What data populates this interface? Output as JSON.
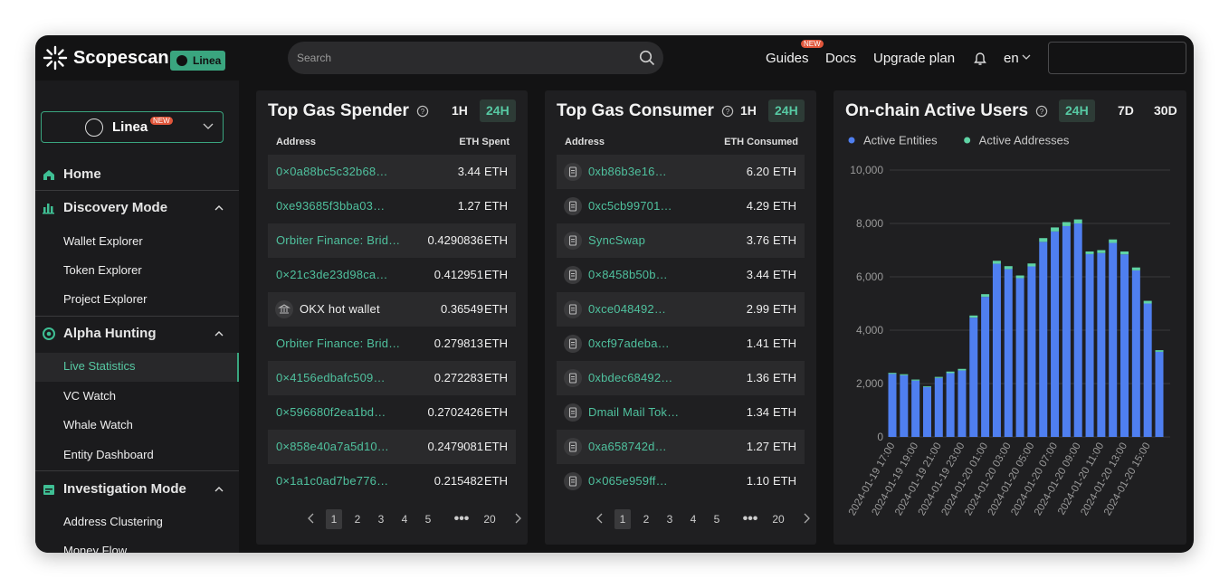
{
  "header": {
    "logo": "Scopescan",
    "chain_badge": "Linea",
    "search_placeholder": "Search",
    "nav": [
      "Guides",
      "Docs",
      "Upgrade plan"
    ],
    "nav_badge": "NEW",
    "language": "en"
  },
  "sidebar": {
    "chain": "Linea",
    "chain_badge": "NEW",
    "active_item": "Live Statistics",
    "sections": [
      {
        "title": "Home",
        "items": []
      },
      {
        "title": "Discovery Mode",
        "items": [
          "Wallet Explorer",
          "Token Explorer",
          "Project Explorer"
        ]
      },
      {
        "title": "Alpha Hunting",
        "items": [
          "Live Statistics",
          "VC Watch",
          "Whale Watch",
          "Entity Dashboard"
        ]
      },
      {
        "title": "Investigation Mode",
        "items": [
          "Address Clustering",
          "Money Flow"
        ]
      }
    ]
  },
  "tables": [
    {
      "title": "Top Gas Spender",
      "tabs": [
        "1H",
        "24H"
      ],
      "active_tab": "24H",
      "columns": [
        "Address",
        "ETH Spent"
      ],
      "rows": [
        {
          "address": "0×0a88bc5c32b68…",
          "amount": "3.44",
          "unit": "ETH",
          "icon": "none"
        },
        {
          "address": "0xe93685f3bba03…",
          "amount": "1.27",
          "unit": "ETH",
          "icon": "none"
        },
        {
          "address": "Orbiter Finance: Brid…",
          "amount": "0.4290836",
          "unit": "ETH",
          "icon": "none"
        },
        {
          "address": "0×21c3de23d98ca…",
          "amount": "0.412951",
          "unit": "ETH",
          "icon": "none"
        },
        {
          "address": "OKX hot wallet",
          "amount": "0.36549",
          "unit": "ETH",
          "icon": "entity"
        },
        {
          "address": "Orbiter Finance: Brid…",
          "amount": "0.279813",
          "unit": "ETH",
          "icon": "none"
        },
        {
          "address": "0×4156edbafc509…",
          "amount": "0.272283",
          "unit": "ETH",
          "icon": "none"
        },
        {
          "address": "0×596680f2ea1bd…",
          "amount": "0.2702426",
          "unit": "ETH",
          "icon": "none"
        },
        {
          "address": "0×858e40a7a5d10…",
          "amount": "0.2479081",
          "unit": "ETH",
          "icon": "none"
        },
        {
          "address": "0×1a1c0ad7be776…",
          "amount": "0.215482",
          "unit": "ETH",
          "icon": "none"
        }
      ],
      "pagination": [
        "1",
        "2",
        "3",
        "4",
        "5",
        "•••",
        "20"
      ],
      "current_page": "1"
    },
    {
      "title": "Top Gas Consumer",
      "tabs": [
        "1H",
        "24H"
      ],
      "active_tab": "24H",
      "columns": [
        "Address",
        "ETH Consumed"
      ],
      "rows": [
        {
          "address": "0xb86b3e16…",
          "amount": "6.20",
          "unit": "ETH",
          "icon": "contract"
        },
        {
          "address": "0xc5cb99701…",
          "amount": "4.29",
          "unit": "ETH",
          "icon": "contract"
        },
        {
          "address": "SyncSwap",
          "amount": "3.76",
          "unit": "ETH",
          "icon": "contract"
        },
        {
          "address": "0×8458b50b…",
          "amount": "3.44",
          "unit": "ETH",
          "icon": "contract"
        },
        {
          "address": "0xce048492…",
          "amount": "2.99",
          "unit": "ETH",
          "icon": "contract"
        },
        {
          "address": "0xcf97adeba…",
          "amount": "1.41",
          "unit": "ETH",
          "icon": "contract"
        },
        {
          "address": "0xbdec68492…",
          "amount": "1.36",
          "unit": "ETH",
          "icon": "contract"
        },
        {
          "address": "Dmail Mail Tok…",
          "amount": "1.34",
          "unit": "ETH",
          "icon": "contract"
        },
        {
          "address": "0xa658742d…",
          "amount": "1.27",
          "unit": "ETH",
          "icon": "contract"
        },
        {
          "address": "0×065e959ff…",
          "amount": "1.10",
          "unit": "ETH",
          "icon": "contract"
        }
      ],
      "pagination": [
        "1",
        "2",
        "3",
        "4",
        "5",
        "•••",
        "20"
      ],
      "current_page": "1"
    }
  ],
  "chart_data": {
    "type": "stacked_bar",
    "title": "On-chain Active Users",
    "tabs": [
      "24H",
      "7D",
      "30D"
    ],
    "active_tab": "24H",
    "categories": [
      "2024-01-19 17:00",
      null,
      "2024-01-19 19:00",
      null,
      "2024-01-19 21:00",
      null,
      "2024-01-19 23:00",
      null,
      "2024-01-20 01:00",
      null,
      "2024-01-20 03:00",
      null,
      "2024-01-20 05:00",
      null,
      "2024-01-20 07:00",
      null,
      "2024-01-20 09:00",
      null,
      "2024-01-20 11:00",
      null,
      "2024-01-20 13:00",
      null,
      "2024-01-20 15:00",
      null
    ],
    "series": [
      {
        "name": "Active Entities",
        "color": "#4f7ff0",
        "values": [
          2360,
          2310,
          2110,
          1870,
          2210,
          2390,
          2490,
          4470,
          5250,
          6490,
          6290,
          5950,
          6390,
          7310,
          7700,
          7900,
          8000,
          6850,
          6890,
          7270,
          6840,
          6240,
          5000,
          3190
        ]
      },
      {
        "name": "Active Addresses",
        "color": "#5fd3a5",
        "values": [
          40,
          40,
          40,
          30,
          40,
          60,
          60,
          80,
          100,
          110,
          110,
          100,
          110,
          140,
          150,
          150,
          150,
          100,
          110,
          130,
          110,
          110,
          100,
          60
        ]
      }
    ],
    "ylim": [
      0,
      10000
    ],
    "yticks": [
      0,
      {
        "value": 2000,
        "label": "2,000"
      },
      {
        "value": 4000,
        "label": "4,000"
      },
      {
        "value": 6000,
        "label": "6,000"
      },
      {
        "value": 8000,
        "label": "8,000"
      },
      {
        "value": 10000,
        "label": "10,000"
      }
    ],
    "grid": true,
    "legend": "top-left"
  }
}
